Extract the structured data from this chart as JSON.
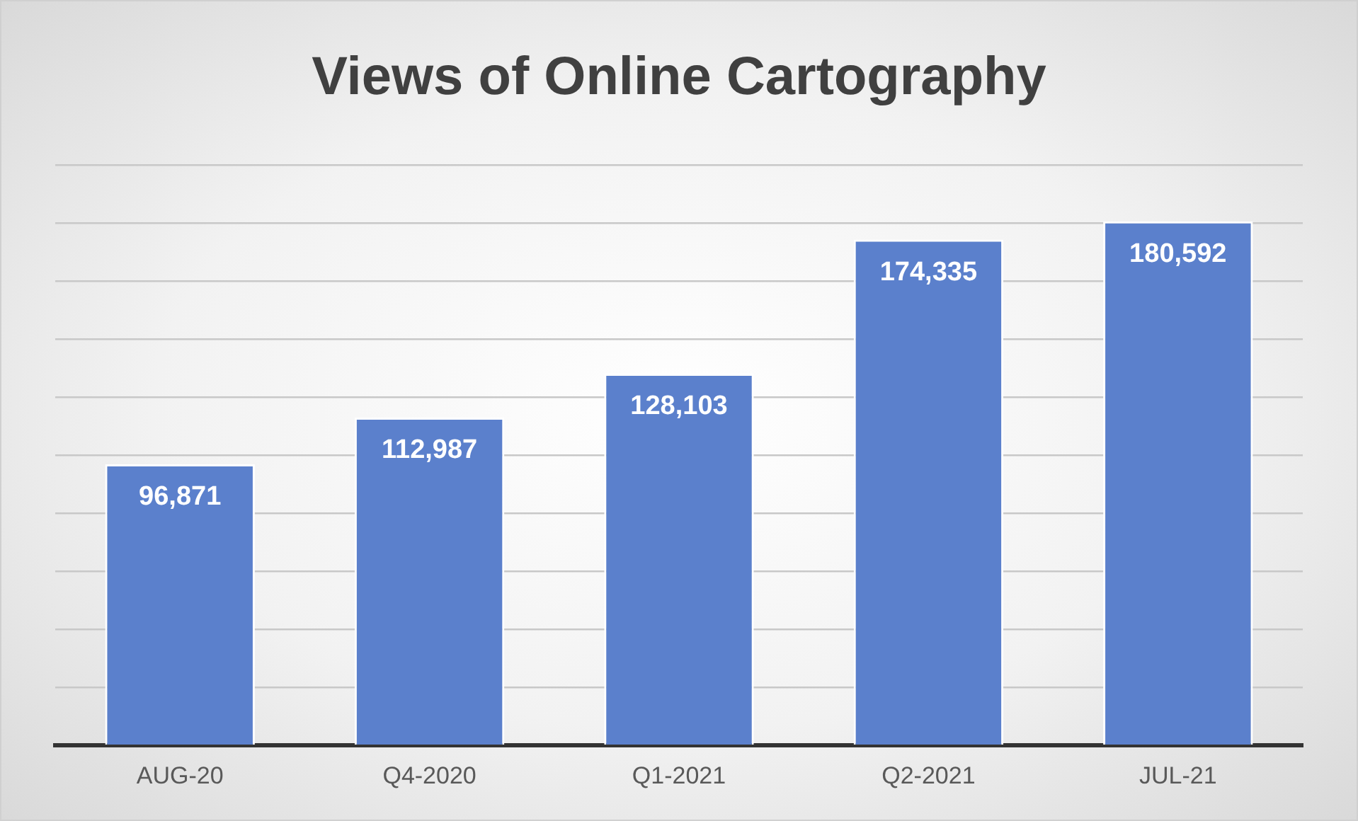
{
  "chart_data": {
    "type": "bar",
    "title": "Views of Online Cartography",
    "categories": [
      "AUG-20",
      "Q4-2020",
      "Q1-2021",
      "Q2-2021",
      "JUL-21"
    ],
    "values": [
      96871,
      112987,
      128103,
      174335,
      180592
    ],
    "value_labels": [
      "96,871",
      "112,987",
      "128,103",
      "174,335",
      "180,592"
    ],
    "color": "#5b80cc",
    "grid": "y",
    "tick_labels": "x",
    "legend": false
  }
}
